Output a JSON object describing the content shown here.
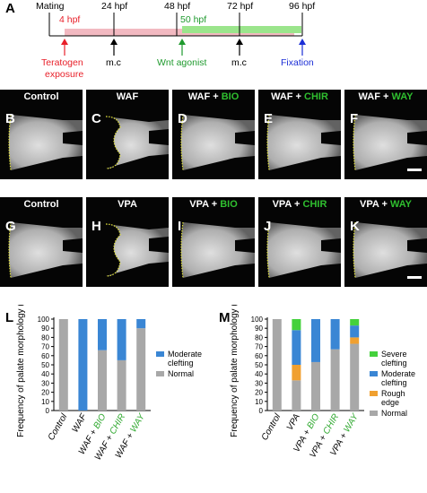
{
  "figure": {
    "panel_letters": [
      "A",
      "B",
      "C",
      "D",
      "E",
      "F",
      "G",
      "H",
      "I",
      "J",
      "K",
      "L",
      "M"
    ]
  },
  "timeline": {
    "letter": "A",
    "mating": "Mating",
    "hpf_24": "24 hpf",
    "hpf_48": "48 hpf",
    "hpf_72": "72 hpf",
    "hpf_96": "96 hpf",
    "hpf_4": "4 hpf",
    "hpf_50": "50 hpf",
    "teratogen": "Teratogen",
    "exposure": "exposure",
    "mc1": "m.c",
    "wnt": "Wnt agonist",
    "mc2": "m.c",
    "fixation": "Fixation",
    "colors": {
      "red": "#e8202a",
      "green": "#1f9a2e",
      "blue": "#1b2ed6",
      "pink_bar": "#f2b9c1",
      "green_bar": "#9be58c"
    }
  },
  "images_row1": [
    {
      "letter": "B",
      "title_a": "Control",
      "title_b": ""
    },
    {
      "letter": "C",
      "title_a": "WAF",
      "title_b": ""
    },
    {
      "letter": "D",
      "title_a": "WAF + ",
      "title_b": "BIO"
    },
    {
      "letter": "E",
      "title_a": "WAF + ",
      "title_b": "CHIR"
    },
    {
      "letter": "F",
      "title_a": "WAF + ",
      "title_b": "WAY"
    }
  ],
  "images_row2": [
    {
      "letter": "G",
      "title_a": "Control",
      "title_b": ""
    },
    {
      "letter": "H",
      "title_a": "VPA",
      "title_b": ""
    },
    {
      "letter": "I",
      "title_a": "VPA + ",
      "title_b": "BIO"
    },
    {
      "letter": "J",
      "title_a": "VPA + ",
      "title_b": "CHIR"
    },
    {
      "letter": "K",
      "title_a": "VPA + ",
      "title_b": "WAY"
    }
  ],
  "chart_data": [
    {
      "panel": "L",
      "type": "bar",
      "stacked": true,
      "ylabel": "Frequency of palate morphology (%)",
      "ylim": [
        0,
        100
      ],
      "yticks": [
        0,
        10,
        20,
        30,
        40,
        50,
        60,
        70,
        80,
        90,
        100
      ],
      "categories": [
        {
          "a": "Control",
          "b": ""
        },
        {
          "a": "WAF",
          "b": ""
        },
        {
          "a": "WAF + ",
          "b": "BIO"
        },
        {
          "a": "WAF + ",
          "b": "CHIR"
        },
        {
          "a": "WAF + ",
          "b": "WAY"
        }
      ],
      "series": [
        {
          "name": "Normal",
          "color": "#a8a8a8",
          "values": [
            100,
            0,
            66,
            55,
            90
          ]
        },
        {
          "name": "Moderate clefting",
          "color": "#3a86d4",
          "values": [
            0,
            100,
            34,
            45,
            10
          ]
        }
      ],
      "legend": [
        {
          "line1": "Moderate",
          "line2": "clefting",
          "color": "#3a86d4"
        },
        {
          "line1": "Normal",
          "line2": "",
          "color": "#a8a8a8"
        }
      ]
    },
    {
      "panel": "M",
      "type": "bar",
      "stacked": true,
      "ylabel": "Frequency of palate morphology (%)",
      "ylim": [
        0,
        100
      ],
      "yticks": [
        0,
        10,
        20,
        30,
        40,
        50,
        60,
        70,
        80,
        90,
        100
      ],
      "categories": [
        {
          "a": "Control",
          "b": ""
        },
        {
          "a": "VPA",
          "b": ""
        },
        {
          "a": "VPA + ",
          "b": "BIO"
        },
        {
          "a": "VPA + ",
          "b": "CHIR"
        },
        {
          "a": "VPA + ",
          "b": "WAY"
        }
      ],
      "series": [
        {
          "name": "Normal",
          "color": "#a8a8a8",
          "values": [
            100,
            33,
            53,
            67,
            73
          ]
        },
        {
          "name": "Rough edge",
          "color": "#f0a030",
          "values": [
            0,
            17,
            0,
            0,
            7
          ]
        },
        {
          "name": "Moderate clefting",
          "color": "#3a86d4",
          "values": [
            0,
            38,
            47,
            33,
            13
          ]
        },
        {
          "name": "Severe clefting",
          "color": "#44d13c",
          "values": [
            0,
            12,
            0,
            0,
            7
          ]
        }
      ],
      "legend": [
        {
          "line1": "Severe",
          "line2": "clefting",
          "color": "#44d13c"
        },
        {
          "line1": "Moderate",
          "line2": "clefting",
          "color": "#3a86d4"
        },
        {
          "line1": "Rough",
          "line2": "edge",
          "color": "#f0a030"
        },
        {
          "line1": "Normal",
          "line2": "",
          "color": "#a8a8a8"
        }
      ]
    }
  ]
}
